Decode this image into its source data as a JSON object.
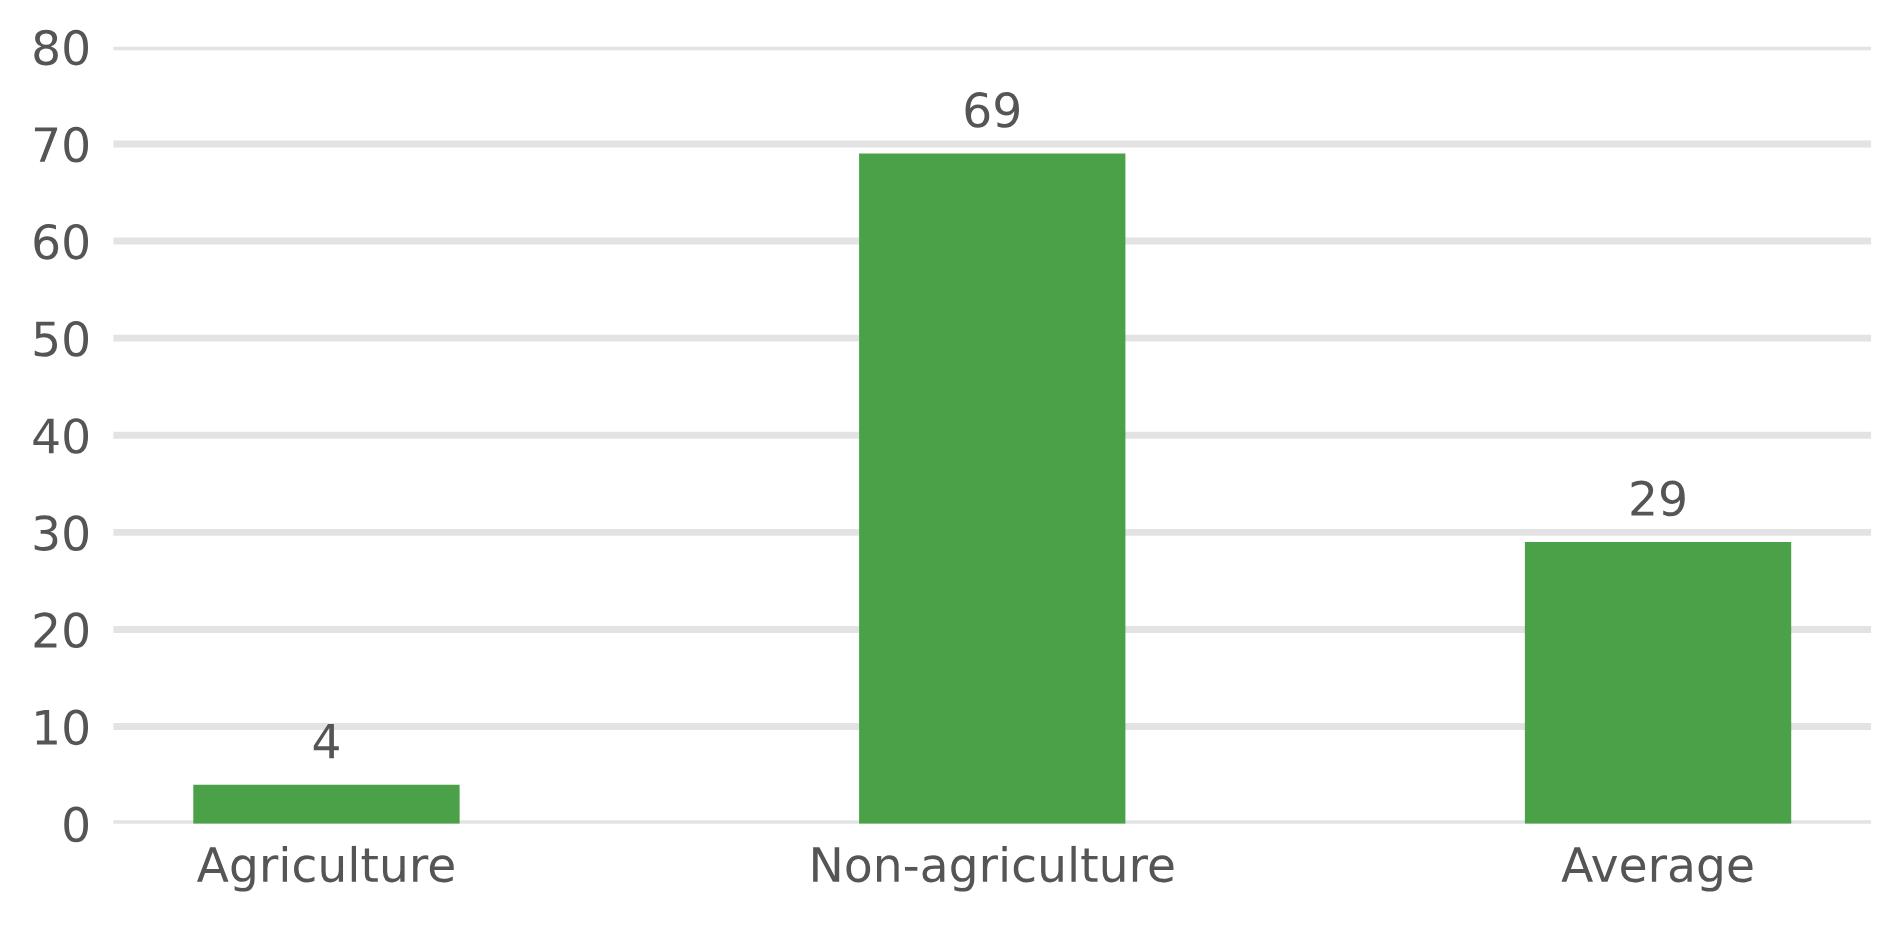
{
  "chart_data": {
    "type": "bar",
    "categories": [
      "Agriculture",
      "Non-agriculture",
      "Average"
    ],
    "values": [
      4,
      69,
      29
    ],
    "color": "#4aa147",
    "ylim": [
      0,
      80
    ],
    "yticks": [
      0,
      10,
      20,
      30,
      40,
      50,
      60,
      70,
      80
    ],
    "grid": "y",
    "data_labels": true
  }
}
